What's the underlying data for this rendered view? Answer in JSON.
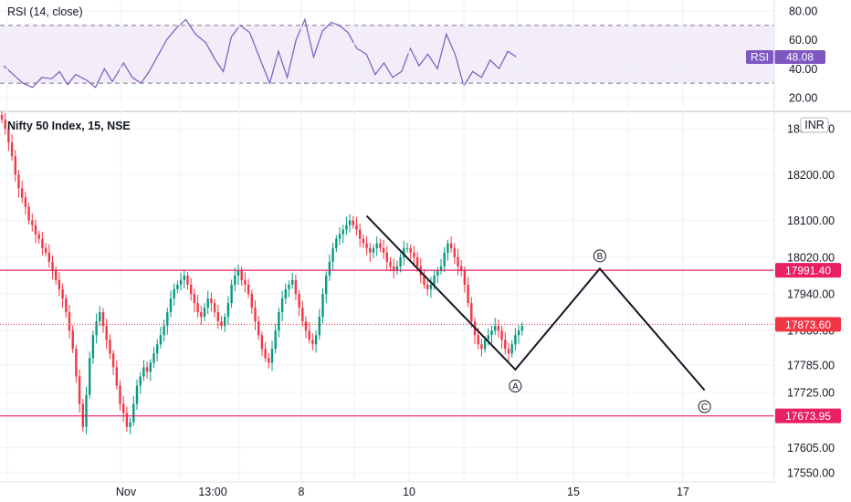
{
  "chart_data": [
    {
      "type": "line",
      "title": "RSI (14, close)",
      "ylim": [
        13,
        85
      ],
      "y_ticks": [
        "80.00",
        "60.00",
        "40.00",
        "20.00"
      ],
      "bands": {
        "upper": 70,
        "lower": 30
      },
      "series": [
        {
          "name": "RSI",
          "color": "#7e57c2",
          "x": [
            0,
            1.2,
            2.4,
            3.6,
            4.8,
            6,
            7,
            8,
            9,
            10.4,
            11.5,
            12.6,
            13.6,
            15,
            16.1,
            17.2,
            18.2,
            19.4,
            20.4,
            21.6,
            22.8,
            24,
            25.3,
            26.5,
            27.5,
            28.5,
            29.6,
            30.8,
            32,
            33.3,
            34.4,
            35.5,
            36.6,
            37.7,
            38.8,
            39.9,
            41,
            42,
            43.1,
            44.2,
            45.4,
            46.5,
            47.6,
            48.7,
            49.8,
            50.9,
            52,
            53.1,
            54.3,
            55.4,
            56.5,
            57.6,
            58.7,
            59.8,
            60.9,
            62,
            63.1,
            64.2
          ],
          "values": [
            42,
            36,
            30,
            27,
            34,
            33,
            38,
            29,
            36,
            32,
            27,
            40,
            31,
            44,
            34,
            30,
            38,
            50,
            60,
            68,
            74,
            64,
            58,
            46,
            38,
            62,
            70,
            65,
            48,
            30,
            52,
            34,
            60,
            74,
            48,
            66,
            72,
            70,
            65,
            54,
            50,
            36,
            44,
            34,
            38,
            54,
            42,
            50,
            40,
            64,
            50,
            28,
            38,
            34,
            46,
            40,
            52,
            48.08
          ]
        }
      ],
      "last_value": "48.08",
      "legend_tag": "RSI"
    },
    {
      "type": "candlestick",
      "title": "Nifty 50 Index, 15, NSE",
      "currency": "INR",
      "ylim": [
        17530,
        18330
      ],
      "y_ticks": [
        "18300.00",
        "18200.00",
        "18100.00",
        "18020.00",
        "17940.00",
        "17860.00",
        "17785.00",
        "17725.00",
        "17605.00",
        "17550.00"
      ],
      "x_ticks": [
        "Nov",
        "13:00",
        "8",
        "10",
        "15",
        "17"
      ],
      "candles_close": [
        18320,
        18300,
        18270,
        18240,
        18200,
        18170,
        18150,
        18130,
        18100,
        18090,
        18070,
        18060,
        18040,
        18030,
        18010,
        17990,
        17970,
        17950,
        17930,
        17900,
        17860,
        17820,
        17760,
        17700,
        17650,
        17720,
        17800,
        17850,
        17880,
        17900,
        17870,
        17840,
        17810,
        17780,
        17740,
        17700,
        17680,
        17650,
        17660,
        17700,
        17740,
        17760,
        17780,
        17770,
        17790,
        17810,
        17830,
        17850,
        17870,
        17900,
        17930,
        17950,
        17960,
        17970,
        17980,
        17960,
        17940,
        17920,
        17900,
        17890,
        17910,
        17930,
        17920,
        17900,
        17880,
        17870,
        17890,
        17920,
        17960,
        17980,
        17990,
        17970,
        17960,
        17940,
        17910,
        17880,
        17850,
        17820,
        17800,
        17790,
        17820,
        17860,
        17900,
        17930,
        17950,
        17960,
        17970,
        17940,
        17910,
        17880,
        17860,
        17840,
        17830,
        17850,
        17890,
        17940,
        17980,
        18010,
        18040,
        18060,
        18070,
        18080,
        18090,
        18100,
        18090,
        18080,
        18060,
        18050,
        18040,
        18030,
        18040,
        18050,
        18040,
        18030,
        18010,
        18000,
        17990,
        18000,
        18020,
        18040,
        18040,
        18030,
        18020,
        18000,
        17980,
        17960,
        17950,
        17960,
        17980,
        17990,
        18000,
        18030,
        18050,
        18040,
        18020,
        18000,
        17990,
        17960,
        17920,
        17880,
        17850,
        17830,
        17820,
        17840,
        17850,
        17860,
        17870,
        17860,
        17840,
        17820,
        17810,
        17830,
        17850,
        17860,
        17870
      ],
      "horizontal_levels": [
        {
          "value": "17991.40",
          "color": "#e91e63"
        },
        {
          "value": "17673.95",
          "color": "#e91e63"
        }
      ],
      "last_price": "17873.60",
      "last_price_color": "#f23645",
      "wave_projection": [
        {
          "label": "",
          "t": 108,
          "price": 18110
        },
        {
          "label": "A",
          "t": 152,
          "price": 17775
        },
        {
          "label": "B",
          "t": 177,
          "price": 17995
        },
        {
          "label": "C",
          "t": 208,
          "price": 17730
        }
      ],
      "up_color": "#089981",
      "down_color": "#f23645"
    }
  ]
}
